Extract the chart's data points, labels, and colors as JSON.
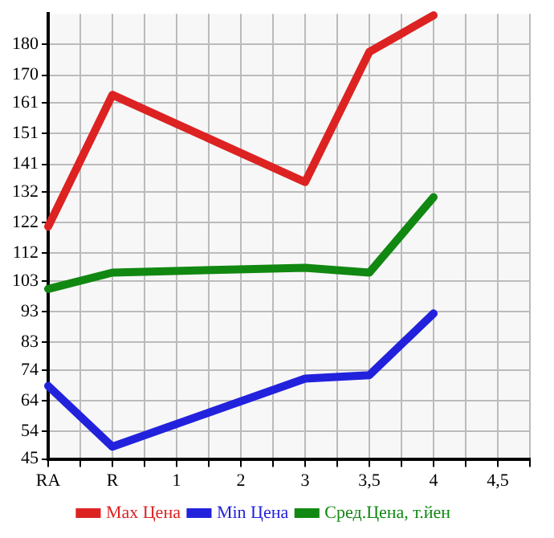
{
  "chart_data": {
    "type": "line",
    "categories": [
      "RA",
      "R",
      "1",
      "2",
      "3",
      "3,5",
      "4",
      "4,5"
    ],
    "series": [
      {
        "name": "Max Цена",
        "color": "#dd2222",
        "values": [
          120.7,
          163.6,
          null,
          null,
          135.2,
          177.6,
          189.5,
          null
        ]
      },
      {
        "name": "Min Цена",
        "color": "#2222dd",
        "values": [
          68.8,
          49,
          null,
          null,
          71.2,
          72.3,
          92.4,
          null
        ]
      },
      {
        "name": "Сред.Цена, т.йен",
        "color": "#118811",
        "values": [
          100.4,
          105.7,
          null,
          null,
          107.3,
          105.7,
          130.3,
          null
        ]
      }
    ],
    "ylim": [
      45,
      190
    ],
    "yticks": [
      45,
      54,
      64,
      74,
      83,
      93,
      103,
      112,
      122,
      132,
      141,
      151,
      161,
      170,
      180
    ],
    "grid": true,
    "legend": "bottom",
    "marker": "none",
    "line_style": "solid"
  }
}
